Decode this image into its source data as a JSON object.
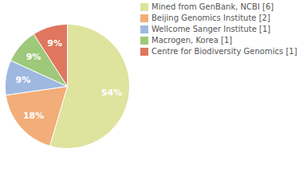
{
  "chart_data": {
    "type": "pie",
    "categories": [
      "Mined from GenBank, NCBI [6]",
      "Beijing Genomics Institute [2]",
      "Wellcome Sanger Institute [1]",
      "Macrogen, Korea [1]",
      "Centre for Biodiversity Genomics [1]"
    ],
    "values": [
      54,
      18,
      9,
      9,
      9
    ],
    "value_labels": [
      "54%",
      "18%",
      "9%",
      "9%",
      "9%"
    ],
    "colors": [
      "#dee39e",
      "#f2ad78",
      "#9fb8e0",
      "#9ec87a",
      "#e0765d"
    ],
    "data_labels": true,
    "legend": "right"
  }
}
